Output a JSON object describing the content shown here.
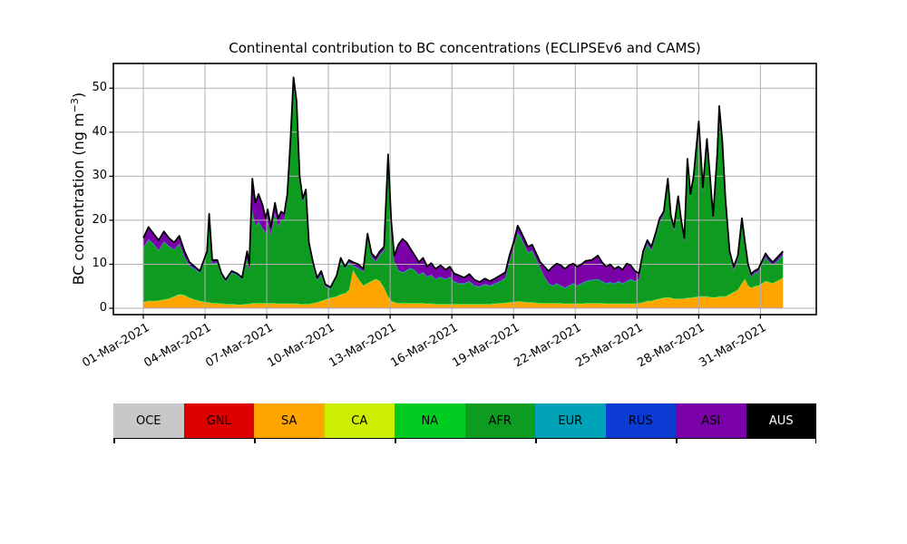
{
  "figure": {
    "title": "Continental contribution to BC concentrations (ECLIPSEv6 and CAMS)",
    "ylabel_parts": {
      "prefix": "BC concentration (ng m",
      "sup": "−3",
      "suffix": ")"
    }
  },
  "legend": {
    "items": [
      {
        "label": "OCE",
        "color": "#c8c8c8",
        "text_color": "#000000"
      },
      {
        "label": "GNL",
        "color": "#dd0000",
        "text_color": "#000000"
      },
      {
        "label": "SA",
        "color": "#ffa500",
        "text_color": "#000000"
      },
      {
        "label": "CA",
        "color": "#cdee00",
        "text_color": "#000000"
      },
      {
        "label": "NA",
        "color": "#00cc22",
        "text_color": "#000000"
      },
      {
        "label": "AFR",
        "color": "#0e9c20",
        "text_color": "#000000"
      },
      {
        "label": "EUR",
        "color": "#00a2b8",
        "text_color": "#000000"
      },
      {
        "label": "RUS",
        "color": "#0b3bd3",
        "text_color": "#000000"
      },
      {
        "label": "ASI",
        "color": "#7a00a8",
        "text_color": "#000000"
      },
      {
        "label": "AUS",
        "color": "#000000",
        "text_color": "#ffffff"
      }
    ]
  },
  "chart_data": {
    "type": "area",
    "stacked": true,
    "title": "Continental contribution to BC concentrations (ECLIPSEv6 and CAMS)",
    "xlabel": "",
    "ylabel": "BC concentration (ng m⁻³)",
    "grid": true,
    "legend_position": "bottom-strip",
    "yticks": [
      0,
      10,
      20,
      30,
      40,
      50
    ],
    "ylim": [
      -1.44,
      55.67
    ],
    "xtick_days": [
      1,
      4,
      7,
      10,
      13,
      16,
      19,
      22,
      25,
      28,
      31
    ],
    "xtick_labels": [
      "01-Mar-2021",
      "04-Mar-2021",
      "07-Mar-2021",
      "10-Mar-2021",
      "13-Mar-2021",
      "16-Mar-2021",
      "19-Mar-2021",
      "22-Mar-2021",
      "25-Mar-2021",
      "28-Mar-2021",
      "31-Mar-2021"
    ],
    "x_unit": "day of March 2021 (fractional, 32.1 ≈ 01-Apr)",
    "x": [
      1.0,
      1.25,
      1.5,
      1.75,
      2.0,
      2.25,
      2.5,
      2.75,
      3.0,
      3.25,
      3.5,
      3.75,
      4.1,
      4.2,
      4.35,
      4.6,
      4.8,
      5.0,
      5.3,
      5.55,
      5.8,
      6.05,
      6.15,
      6.3,
      6.45,
      6.6,
      6.8,
      6.95,
      7.05,
      7.2,
      7.4,
      7.55,
      7.7,
      7.85,
      8.0,
      8.15,
      8.3,
      8.45,
      8.6,
      8.75,
      8.9,
      9.05,
      9.25,
      9.45,
      9.65,
      9.85,
      10.1,
      10.4,
      10.6,
      10.8,
      11.0,
      11.2,
      11.45,
      11.7,
      11.9,
      12.1,
      12.3,
      12.5,
      12.7,
      12.9,
      13.05,
      13.2,
      13.4,
      13.6,
      13.8,
      14.0,
      14.2,
      14.4,
      14.6,
      14.8,
      15.0,
      15.2,
      15.45,
      15.7,
      15.9,
      16.1,
      16.35,
      16.6,
      16.85,
      17.1,
      17.35,
      17.6,
      17.85,
      18.1,
      18.35,
      18.6,
      18.8,
      19.0,
      19.2,
      19.35,
      19.5,
      19.7,
      19.9,
      20.1,
      20.3,
      20.5,
      20.7,
      20.9,
      21.1,
      21.3,
      21.5,
      21.7,
      21.9,
      22.1,
      22.3,
      22.5,
      22.8,
      23.1,
      23.3,
      23.5,
      23.7,
      23.9,
      24.1,
      24.3,
      24.5,
      24.7,
      24.9,
      25.1,
      25.3,
      25.5,
      25.7,
      25.9,
      26.1,
      26.3,
      26.5,
      26.65,
      26.8,
      27.0,
      27.15,
      27.3,
      27.45,
      27.6,
      27.75,
      28.0,
      28.2,
      28.4,
      28.55,
      28.7,
      28.9,
      29.0,
      29.15,
      29.3,
      29.5,
      29.7,
      29.9,
      30.1,
      30.25,
      30.4,
      30.55,
      30.7,
      30.9,
      31.1,
      31.25,
      31.4,
      31.6,
      31.8,
      32.0,
      32.1
    ],
    "series": [
      {
        "name": "OCE",
        "color": "#c8c8c8",
        "constant": 0.05
      },
      {
        "name": "GNL",
        "color": "#dd0000",
        "constant": 0.1
      },
      {
        "name": "SA",
        "color": "#ffa500",
        "values": [
          1.2,
          1.4,
          1.4,
          1.5,
          1.7,
          1.9,
          2.4,
          2.9,
          2.7,
          2.1,
          1.7,
          1.4,
          1.1,
          1.1,
          0.9,
          0.9,
          0.8,
          0.7,
          0.7,
          0.6,
          0.6,
          0.7,
          0.7,
          0.9,
          0.9,
          0.9,
          0.9,
          0.9,
          0.9,
          0.9,
          0.9,
          0.8,
          0.8,
          0.8,
          0.8,
          0.8,
          0.8,
          0.8,
          0.7,
          0.7,
          0.7,
          0.7,
          0.9,
          1.1,
          1.4,
          1.7,
          2.1,
          2.4,
          2.9,
          3.1,
          3.9,
          8.4,
          6.4,
          4.9,
          5.4,
          5.9,
          6.4,
          5.9,
          4.4,
          2.4,
          1.4,
          1.1,
          0.9,
          0.9,
          0.9,
          0.9,
          0.9,
          0.9,
          0.9,
          0.8,
          0.8,
          0.7,
          0.7,
          0.7,
          0.7,
          0.7,
          0.7,
          0.7,
          0.7,
          0.7,
          0.7,
          0.7,
          0.7,
          0.8,
          0.9,
          1.0,
          1.1,
          1.2,
          1.3,
          1.3,
          1.2,
          1.1,
          1.1,
          1.0,
          0.9,
          0.9,
          0.9,
          0.9,
          0.9,
          0.9,
          0.8,
          0.8,
          0.8,
          0.8,
          0.8,
          0.9,
          0.9,
          0.9,
          0.9,
          0.8,
          0.8,
          0.8,
          0.8,
          0.8,
          0.8,
          0.8,
          0.8,
          0.9,
          1.1,
          1.4,
          1.4,
          1.7,
          1.9,
          2.1,
          2.2,
          2.1,
          1.9,
          1.9,
          1.9,
          1.9,
          2.1,
          2.1,
          2.2,
          2.4,
          2.4,
          2.4,
          2.3,
          2.2,
          2.3,
          2.4,
          2.4,
          2.4,
          2.9,
          3.4,
          3.9,
          5.4,
          6.4,
          4.9,
          4.4,
          4.7,
          4.9,
          5.4,
          5.9,
          5.7,
          5.4,
          5.9,
          6.4,
          6.7
        ]
      },
      {
        "name": "CA",
        "color": "#cdee00",
        "constant": 0.05
      },
      {
        "name": "NA",
        "color": "#00cc22",
        "constant": 0.12
      },
      {
        "name": "AFR",
        "color": "#0e9c20",
        "values": [
          12.0,
          13.8,
          12.8,
          11.2,
          13.0,
          11.8,
          10.5,
          11.3,
          8.5,
          7.1,
          6.8,
          6.3,
          10.6,
          18.6,
          8.8,
          9.1,
          6.3,
          5.0,
          7.0,
          6.6,
          5.6,
          10.0,
          7.5,
          20.8,
          17.3,
          18.3,
          16.8,
          15.8,
          18.3,
          15.3,
          20.3,
          17.4,
          18.9,
          18.9,
          23.4,
          35.4,
          49.4,
          44.4,
          27.5,
          23.0,
          25.0,
          13.0,
          8.3,
          4.8,
          5.8,
          2.8,
          1.9,
          4.3,
          7.6,
          5.6,
          6.1,
          0.8,
          2.3,
          3.0,
          10.3,
          5.3,
          3.8,
          5.8,
          8.3,
          30.8,
          17.3,
          9.1,
          7.3,
          6.8,
          7.3,
          7.8,
          7.3,
          6.3,
          6.8,
          5.9,
          6.4,
          5.5,
          6.0,
          5.5,
          6.0,
          5.0,
          4.5,
          4.5,
          5.0,
          4.0,
          3.8,
          4.3,
          4.0,
          4.4,
          4.8,
          5.5,
          9.1,
          12.0,
          15.4,
          14.4,
          13.0,
          11.1,
          11.6,
          9.7,
          7.8,
          5.8,
          4.3,
          3.8,
          4.3,
          3.8,
          3.4,
          3.9,
          4.4,
          3.9,
          4.4,
          4.8,
          5.1,
          5.3,
          4.8,
          4.4,
          4.7,
          4.4,
          4.9,
          4.4,
          4.9,
          5.4,
          4.9,
          5.3,
          10.6,
          12.8,
          11.3,
          14.0,
          17.3,
          18.6,
          26.0,
          17.6,
          15.3,
          22.3,
          16.8,
          12.8,
          30.1,
          22.6,
          26.5,
          38.3,
          23.8,
          34.3,
          26.4,
          17.5,
          31.4,
          41.8,
          34.3,
          21.3,
          8.8,
          4.8,
          6.8,
          13.8,
          7.3,
          3.8,
          2.3,
          2.8,
          3.0,
          4.5,
          5.3,
          4.5,
          4.1,
          4.3,
          4.8,
          5.0
        ]
      },
      {
        "name": "EUR",
        "color": "#00a2b8",
        "constant": 0.07
      },
      {
        "name": "RUS",
        "color": "#0b3bd3",
        "constant": 0.12
      },
      {
        "name": "ASI",
        "color": "#7a00a8",
        "values": [
          2.2,
          2.7,
          2.2,
          2.2,
          2.2,
          1.7,
          1.5,
          1.7,
          1.2,
          0.7,
          0.4,
          0.2,
          0.7,
          1.2,
          0.7,
          0.4,
          0.3,
          0.2,
          0.2,
          0.2,
          0.2,
          1.7,
          1.2,
          7.2,
          5.2,
          6.2,
          5.2,
          3.2,
          2.7,
          1.7,
          2.2,
          1.7,
          1.7,
          1.2,
          1.2,
          1.2,
          1.7,
          1.2,
          1.2,
          0.7,
          0.7,
          0.7,
          0.7,
          0.5,
          0.7,
          0.4,
          0.2,
          0.2,
          0.4,
          0.2,
          0.4,
          0.7,
          0.7,
          0.5,
          0.7,
          0.7,
          0.7,
          0.7,
          0.7,
          1.2,
          0.7,
          1.2,
          5.7,
          7.5,
          6.2,
          4.2,
          3.2,
          2.7,
          3.2,
          2.2,
          2.5,
          2.2,
          2.5,
          2.0,
          2.2,
          1.7,
          1.7,
          1.2,
          1.5,
          1.2,
          0.9,
          1.2,
          0.9,
          1.0,
          1.2,
          1.1,
          1.2,
          1.2,
          1.5,
          1.2,
          1.2,
          1.2,
          1.2,
          1.2,
          1.2,
          2.2,
          2.7,
          4.2,
          4.4,
          4.5,
          4.2,
          4.5,
          4.4,
          4.2,
          4.2,
          4.5,
          4.4,
          5.2,
          4.2,
          3.7,
          3.9,
          3.2,
          3.2,
          3.0,
          3.9,
          3.0,
          2.2,
          1.2,
          0.7,
          0.7,
          0.7,
          0.7,
          0.7,
          0.7,
          0.7,
          0.7,
          0.7,
          0.7,
          0.7,
          0.7,
          1.2,
          0.7,
          0.7,
          1.2,
          0.7,
          1.2,
          0.7,
          0.7,
          0.7,
          1.2,
          0.7,
          0.7,
          0.7,
          0.7,
          0.7,
          0.7,
          0.7,
          0.7,
          0.5,
          0.4,
          0.5,
          0.5,
          0.7,
          0.7,
          0.4,
          0.7,
          0.7,
          0.7
        ]
      },
      {
        "name": "AUS",
        "color": "#000000",
        "constant": 0.05
      }
    ],
    "total_line_color": "#000000",
    "grid_color": "#b0b0b0"
  }
}
